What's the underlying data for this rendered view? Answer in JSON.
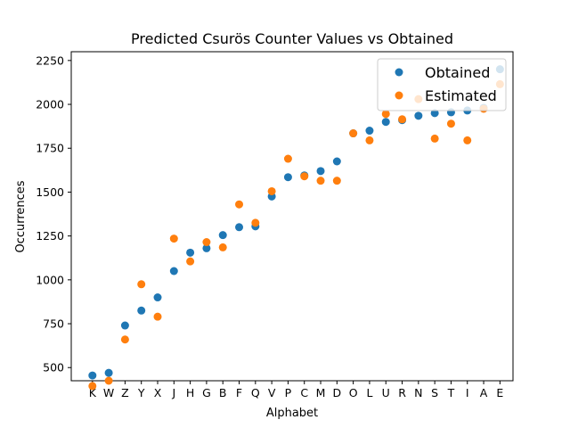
{
  "chart_data": {
    "type": "scatter",
    "title": "Predicted Csurös Counter Values vs Obtained",
    "xlabel": "Alphabet",
    "ylabel": "Occurrences",
    "categories": [
      "K",
      "W",
      "Z",
      "Y",
      "X",
      "J",
      "H",
      "G",
      "B",
      "F",
      "Q",
      "V",
      "P",
      "C",
      "M",
      "D",
      "O",
      "L",
      "U",
      "R",
      "N",
      "S",
      "T",
      "I",
      "A",
      "E"
    ],
    "ylim": [
      425,
      2300
    ],
    "yticks": [
      500,
      750,
      1000,
      1250,
      1500,
      1750,
      2000,
      2250
    ],
    "grid": false,
    "legend_position": "top-right",
    "series": [
      {
        "name": "Obtained",
        "color": "#1f77b4",
        "values": [
          455,
          470,
          740,
          825,
          900,
          1050,
          1155,
          1180,
          1255,
          1300,
          1305,
          1475,
          1585,
          1595,
          1620,
          1675,
          1835,
          1850,
          1900,
          1910,
          1935,
          1950,
          1955,
          1965,
          1980,
          2200
        ]
      },
      {
        "name": "Estimated",
        "color": "#ff7f0e",
        "values": [
          395,
          425,
          660,
          975,
          790,
          1235,
          1105,
          1215,
          1185,
          1430,
          1325,
          1505,
          1690,
          1590,
          1565,
          1565,
          1835,
          1795,
          1945,
          1915,
          2030,
          1805,
          1890,
          1795,
          1975,
          2115
        ]
      }
    ]
  }
}
